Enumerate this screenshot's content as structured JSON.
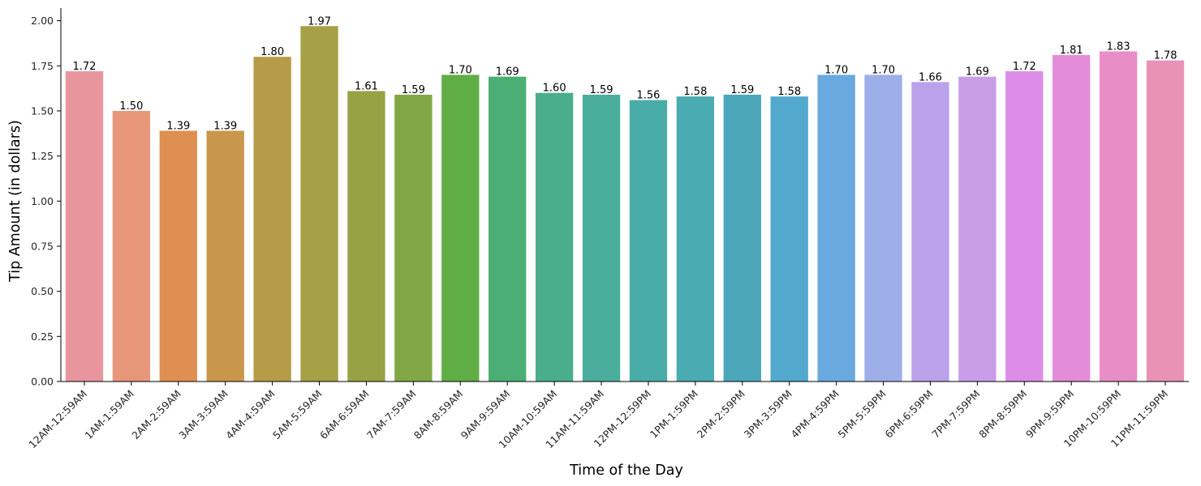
{
  "chart_data": {
    "type": "bar",
    "xlabel": "Time of the Day",
    "ylabel": "Tip Amount (in dollars)",
    "ylim": [
      0,
      2.07
    ],
    "yticks": [
      "0.00",
      "0.25",
      "0.50",
      "0.75",
      "1.00",
      "1.25",
      "1.50",
      "1.75",
      "2.00"
    ],
    "grid": false,
    "categories": [
      "12AM-12:59AM",
      "1AM-1:59AM",
      "2AM-2:59AM",
      "3AM-3:59AM",
      "4AM-4:59AM",
      "5AM-5:59AM",
      "6AM-6:59AM",
      "7AM-7:59AM",
      "8AM-8:59AM",
      "9AM-9:59AM",
      "10AM-10:59AM",
      "11AM-11:59AM",
      "12PM-12:59PM",
      "1PM-1:59PM",
      "2PM-2:59PM",
      "3PM-3:59PM",
      "4PM-4:59PM",
      "5PM-5:59PM",
      "6PM-6:59PM",
      "7PM-7:59PM",
      "8PM-8:59PM",
      "9PM-9:59PM",
      "10PM-10:59PM",
      "11PM-11:59PM"
    ],
    "values": [
      1.72,
      1.5,
      1.39,
      1.39,
      1.8,
      1.97,
      1.61,
      1.59,
      1.7,
      1.69,
      1.6,
      1.59,
      1.56,
      1.58,
      1.59,
      1.58,
      1.7,
      1.7,
      1.66,
      1.69,
      1.72,
      1.81,
      1.83,
      1.78
    ],
    "labels": [
      "1.72",
      "1.50",
      "1.39",
      "1.39",
      "1.80",
      "1.97",
      "1.61",
      "1.59",
      "1.70",
      "1.69",
      "1.60",
      "1.59",
      "1.56",
      "1.58",
      "1.59",
      "1.58",
      "1.70",
      "1.70",
      "1.66",
      "1.69",
      "1.72",
      "1.81",
      "1.83",
      "1.78"
    ],
    "colors": [
      "#e8959e",
      "#e8967a",
      "#df8f52",
      "#c9974c",
      "#b59c49",
      "#a6a046",
      "#96a244",
      "#82a746",
      "#60ad46",
      "#4aae75",
      "#4aae8d",
      "#4aad9c",
      "#4aaca7",
      "#4aabb0",
      "#4ba6b9",
      "#52a9cd",
      "#6aa9e0",
      "#9eaee8",
      "#b9a2ea",
      "#c99de8",
      "#dd8ce8",
      "#e48cd9",
      "#e88dc5",
      "#e893b6"
    ]
  }
}
